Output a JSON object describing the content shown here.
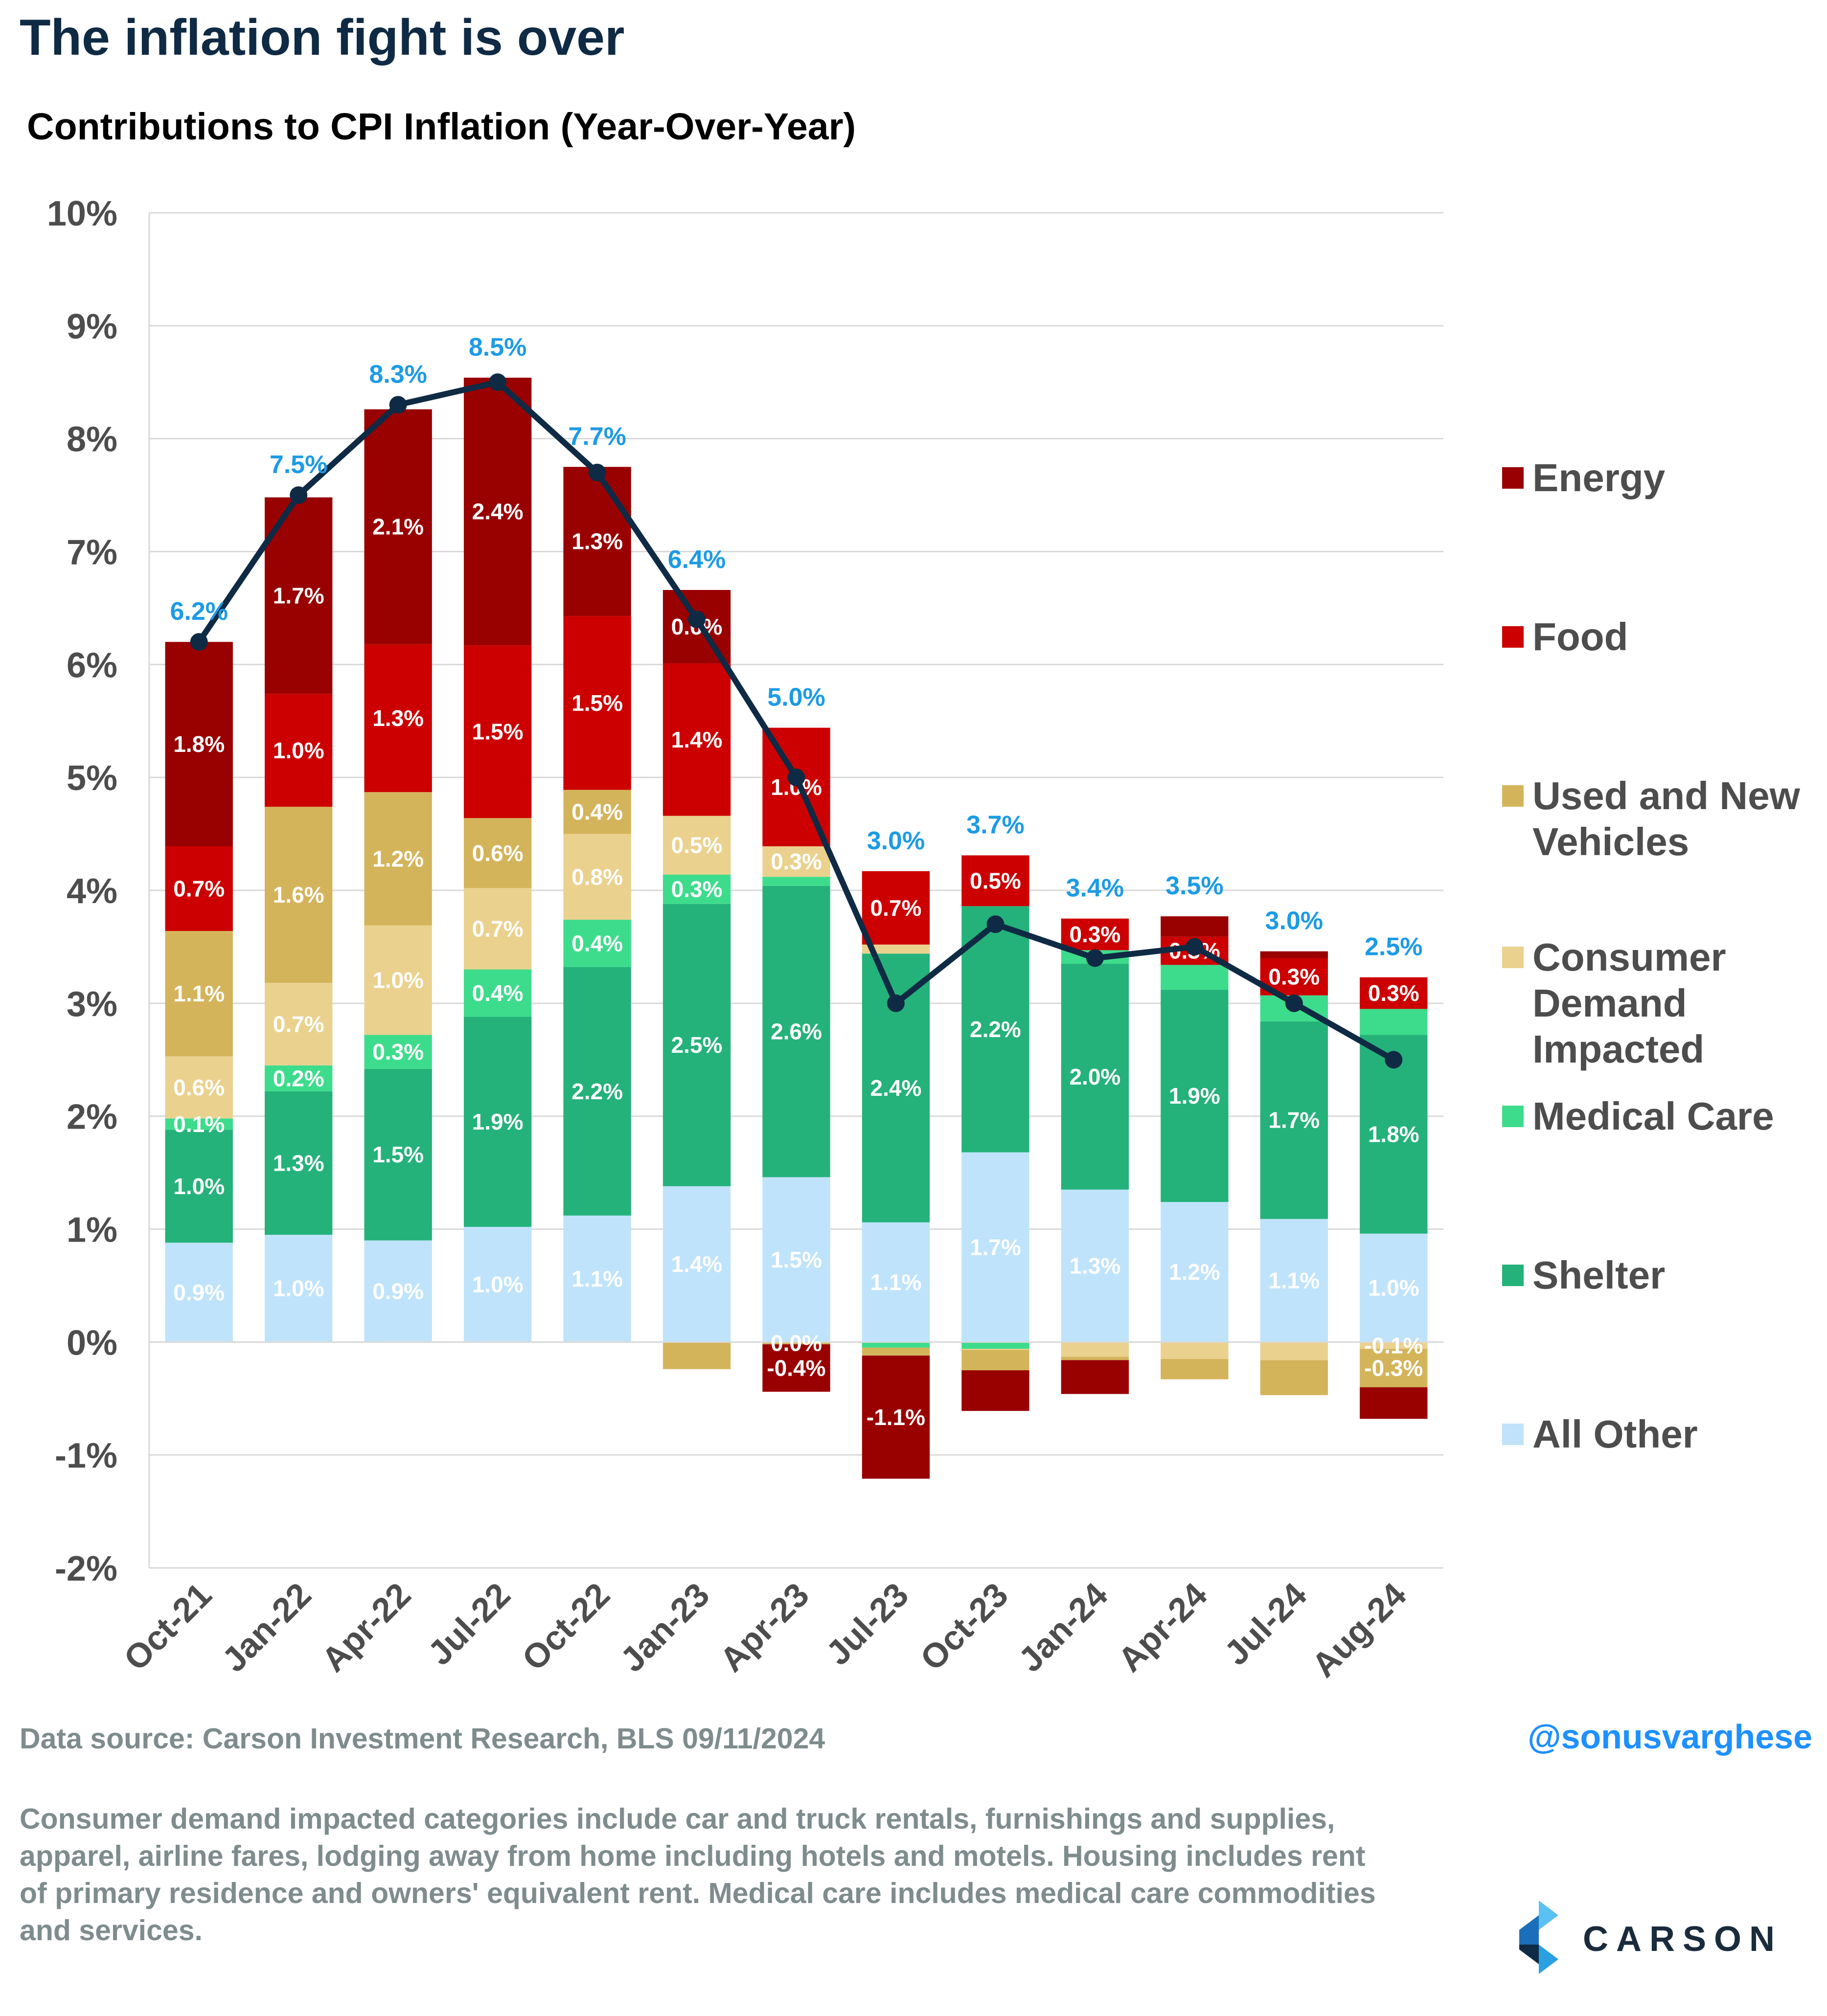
{
  "title": "The inflation fight is over",
  "subtitle": "Contributions to CPI Inflation (Year-Over-Year)",
  "source": "Data source: Carson Investment Research, BLS   09/11/2024",
  "handle": "@sonusvarghese",
  "footnote": "Consumer demand impacted categories include car and truck rentals, furnishings and supplies, apparel, airline fares, lodging away from home including hotels and motels. Housing includes rent of primary residence and owners' equivalent rent. Medical care includes medical care commodities and services.",
  "logo_text": "CARSON",
  "chart_data": {
    "type": "bar",
    "stacked": true,
    "categories": [
      "Oct-21",
      "Jan-22",
      "Apr-22",
      "Jul-22",
      "Oct-22",
      "Jan-23",
      "Apr-23",
      "Jul-23",
      "Oct-23",
      "Jan-24",
      "Apr-24",
      "Jul-24",
      "Aug-24"
    ],
    "ylim": [
      -2,
      10
    ],
    "yticks": [
      -2,
      -1,
      0,
      1,
      2,
      3,
      4,
      5,
      6,
      7,
      8,
      9,
      10
    ],
    "ytick_labels": [
      "-2%",
      "-1%",
      "0%",
      "1%",
      "2%",
      "3%",
      "4%",
      "5%",
      "6%",
      "7%",
      "8%",
      "9%",
      "10%"
    ],
    "grid": true,
    "legend_position": "right",
    "series": [
      {
        "name": "All Other",
        "color": "#bfe3fb",
        "label_color": "#ffffff",
        "values": [
          0.88,
          0.95,
          0.9,
          1.02,
          1.12,
          1.38,
          1.46,
          1.06,
          1.68,
          1.35,
          1.24,
          1.09,
          0.96
        ],
        "labels": [
          "0.9%",
          "1.0%",
          "0.9%",
          "1.0%",
          "1.1%",
          "1.4%",
          "1.5%",
          "1.1%",
          "1.7%",
          "1.3%",
          "1.2%",
          "1.1%",
          "1.0%"
        ]
      },
      {
        "name": "Shelter",
        "color": "#24b27a",
        "label_color": "#ffffff",
        "values": [
          1.0,
          1.27,
          1.52,
          1.86,
          2.2,
          2.5,
          2.58,
          2.38,
          2.18,
          2.0,
          1.88,
          1.75,
          1.76
        ],
        "labels": [
          "1.0%",
          "1.3%",
          "1.5%",
          "1.9%",
          "2.2%",
          "2.5%",
          "2.6%",
          "2.4%",
          "2.2%",
          "2.0%",
          "1.9%",
          "1.7%",
          "1.8%"
        ]
      },
      {
        "name": "Medical Care",
        "color": "#3ddc8c",
        "label_color": "#ffffff",
        "values": [
          0.1,
          0.23,
          0.3,
          0.42,
          0.42,
          0.26,
          0.08,
          -0.05,
          -0.06,
          0.12,
          0.22,
          0.23,
          0.23
        ],
        "labels": [
          "0.1%",
          "0.2%",
          "0.3%",
          "0.4%",
          "0.4%",
          "0.3%",
          "",
          "",
          "",
          "",
          "",
          "",
          ""
        ]
      },
      {
        "name": "Consumer Demand Impacted",
        "color": "#ead18e",
        "label_color": "#ffffff",
        "values": [
          0.55,
          0.73,
          0.97,
          0.72,
          0.76,
          0.52,
          0.27,
          0.08,
          -0.01,
          -0.13,
          -0.15,
          -0.16,
          -0.06
        ],
        "labels": [
          "0.6%",
          "0.7%",
          "1.0%",
          "0.7%",
          "0.8%",
          "0.5%",
          "0.3%",
          "",
          "",
          "",
          "",
          "",
          "-0.1%"
        ]
      },
      {
        "name": "Used and New Vehicles",
        "color": "#d4b45b",
        "label_color": "#ffffff",
        "values": [
          1.11,
          1.56,
          1.18,
          0.62,
          0.39,
          -0.24,
          -0.02,
          -0.07,
          -0.18,
          -0.03,
          -0.18,
          -0.31,
          -0.34
        ],
        "labels": [
          "1.1%",
          "1.6%",
          "1.2%",
          "0.6%",
          "0.4%",
          "",
          "0.0%",
          "",
          "",
          "",
          "",
          "",
          "-0.3%"
        ]
      },
      {
        "name": "Food",
        "color": "#cc0000",
        "label_color": "#ffffff",
        "values": [
          0.75,
          1.0,
          1.31,
          1.53,
          1.54,
          1.35,
          1.05,
          0.65,
          0.45,
          0.28,
          0.25,
          0.33,
          0.28
        ],
        "labels": [
          "0.7%",
          "1.0%",
          "1.3%",
          "1.5%",
          "1.5%",
          "1.4%",
          "1.0%",
          "0.7%",
          "0.5%",
          "0.3%",
          "0.3%",
          "0.3%",
          "0.3%"
        ]
      },
      {
        "name": "Energy",
        "color": "#990000",
        "label_color": "#ffffff",
        "values": [
          1.81,
          1.74,
          2.08,
          2.37,
          1.32,
          0.65,
          -0.42,
          -1.09,
          -0.36,
          -0.3,
          0.18,
          0.06,
          -0.28
        ],
        "labels": [
          "1.8%",
          "1.7%",
          "2.1%",
          "2.4%",
          "1.3%",
          "0.6%",
          "-0.4%",
          "-1.1%",
          "",
          "",
          "",
          "",
          ""
        ]
      }
    ],
    "line": {
      "name": "CPI",
      "color": "#0f2a44",
      "values": [
        6.2,
        7.5,
        8.3,
        8.5,
        7.7,
        6.4,
        5.0,
        3.0,
        3.7,
        3.4,
        3.5,
        3.0,
        2.5
      ],
      "labels": [
        "6.2%",
        "7.5%",
        "8.3%",
        "8.5%",
        "7.7%",
        "6.4%",
        "5.0%",
        "3.0%",
        "3.7%",
        "3.4%",
        "3.5%",
        "3.0%",
        "2.5%"
      ],
      "label_color": "#1c9be6"
    },
    "legend_order": [
      "Energy",
      "Food",
      "Used and New Vehicles",
      "Consumer Demand Impacted",
      "Medical Care",
      "Shelter",
      "All Other"
    ]
  }
}
